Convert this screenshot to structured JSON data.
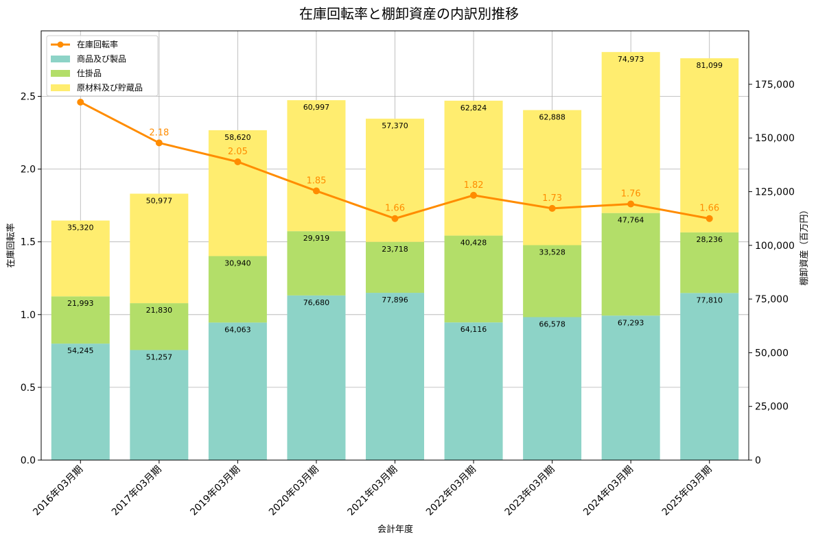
{
  "chart_data": {
    "type": "bar",
    "stacked": true,
    "title": "在庫回転率と棚卸資産の内訳別推移",
    "xlabel": "会計年度",
    "ylabel_left": "在庫回転率",
    "ylabel_right": "棚卸資産（百万円）",
    "categories": [
      "2016年03月期",
      "2017年03月期",
      "2019年03月期",
      "2020年03月期",
      "2021年03月期",
      "2022年03月期",
      "2023年03月期",
      "2024年03月期",
      "2025年03月期"
    ],
    "series": [
      {
        "name": "商品及び製品",
        "axis": "right",
        "color": "#8dd3c7",
        "values": [
          54245,
          51257,
          64063,
          76680,
          77896,
          64116,
          66578,
          67293,
          77810
        ]
      },
      {
        "name": "仕掛品",
        "axis": "right",
        "color": "#b3de69",
        "values": [
          21993,
          21830,
          30940,
          29919,
          23718,
          40428,
          33528,
          47764,
          28236
        ]
      },
      {
        "name": "原材料及び貯蔵品",
        "axis": "right",
        "color": "#ffed6f",
        "values": [
          35320,
          50977,
          58620,
          60997,
          57370,
          62824,
          62888,
          74973,
          81099
        ]
      }
    ],
    "line": {
      "name": "在庫回転率",
      "axis": "left",
      "color": "#ff8c00",
      "values": [
        2.46,
        2.18,
        2.05,
        1.85,
        1.66,
        1.82,
        1.73,
        1.76,
        1.66
      ],
      "point_labels": [
        "",
        "2.18",
        "2.05",
        "1.85",
        "1.66",
        "1.82",
        "1.73",
        "1.76",
        "1.66"
      ]
    },
    "ylim_left": [
      0,
      2.95
    ],
    "ylim_right": [
      0,
      199886
    ],
    "yticks_left": [
      "0.0",
      "0.5",
      "1.0",
      "1.5",
      "2.0",
      "2.5"
    ],
    "yticks_right": [
      "0",
      "25,000",
      "50,000",
      "75,000",
      "100,000",
      "125,000",
      "150,000",
      "175,000"
    ],
    "grid": true,
    "legend_position": "top-left"
  }
}
